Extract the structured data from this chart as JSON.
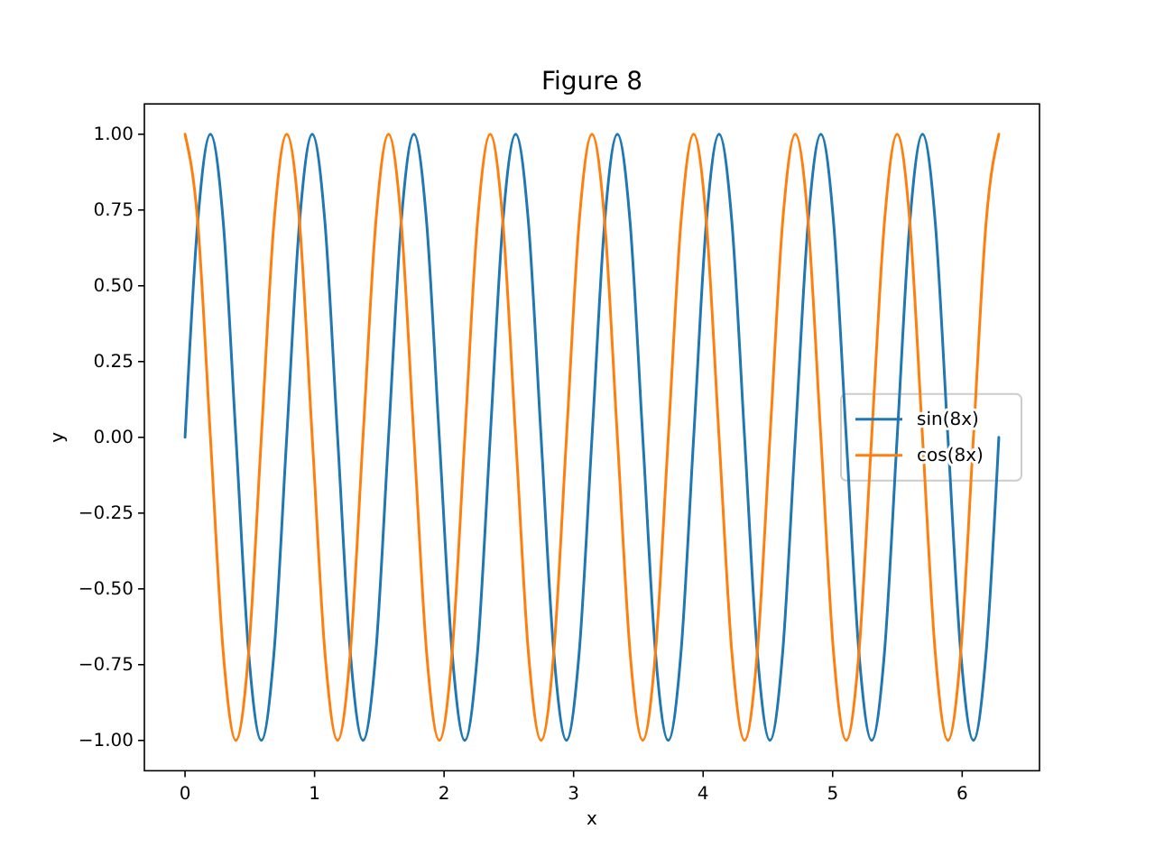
{
  "chart_data": {
    "type": "line",
    "title": "Figure 8",
    "xlabel": "x",
    "ylabel": "y",
    "x": [
      0,
      0.098,
      0.196,
      0.295,
      0.393,
      0.491,
      0.589,
      0.687,
      0.785,
      0.884,
      0.982,
      1.08,
      1.178,
      1.276,
      1.374,
      1.473,
      1.571,
      1.669,
      1.767,
      1.865,
      1.963,
      2.062,
      2.16,
      2.258,
      2.356,
      2.454,
      2.553,
      2.651,
      2.749,
      2.847,
      2.945,
      3.043,
      3.142,
      3.24,
      3.338,
      3.436,
      3.534,
      3.632,
      3.731,
      3.829,
      3.927,
      4.025,
      4.123,
      4.222,
      4.32,
      4.418,
      4.516,
      4.614,
      4.712,
      4.811,
      4.909,
      5.007,
      5.105,
      5.203,
      5.301,
      5.4,
      5.498,
      5.596,
      5.694,
      5.792,
      5.89,
      5.989,
      6.087,
      6.185,
      6.283
    ],
    "series": [
      {
        "name": "sin(8x)",
        "color": "#1f77b4",
        "values": [
          0,
          0.71,
          1,
          0.71,
          0,
          -0.71,
          -1,
          -0.71,
          0,
          0.71,
          1,
          0.71,
          0,
          -0.71,
          -1,
          -0.71,
          0,
          0.71,
          1,
          0.71,
          0,
          -0.71,
          -1,
          -0.71,
          0,
          0.71,
          1,
          0.71,
          0,
          -0.71,
          -1,
          -0.71,
          0,
          0.71,
          1,
          0.71,
          0,
          -0.71,
          -1,
          -0.71,
          0,
          0.71,
          1,
          0.71,
          0,
          -0.71,
          -1,
          -0.71,
          0,
          0.71,
          1,
          0.71,
          0,
          -0.71,
          -1,
          -0.71,
          0,
          0.71,
          1,
          0.71,
          0,
          -0.71,
          -1,
          -0.71,
          0
        ]
      },
      {
        "name": "cos(8x)",
        "color": "#ff7f0e",
        "values": [
          1,
          0.71,
          0,
          -0.71,
          -1,
          -0.71,
          0,
          0.71,
          1,
          0.71,
          0,
          -0.71,
          -1,
          -0.71,
          0,
          0.71,
          1,
          0.71,
          0,
          -0.71,
          -1,
          -0.71,
          0,
          0.71,
          1,
          0.71,
          0,
          -0.71,
          -1,
          -0.71,
          0,
          0.71,
          1,
          0.71,
          0,
          -0.71,
          -1,
          -0.71,
          0,
          0.71,
          1,
          0.71,
          0,
          -0.71,
          -1,
          -0.71,
          0,
          0.71,
          1,
          0.71,
          0,
          -0.71,
          -1,
          -0.71,
          0,
          0.71,
          1,
          0.71,
          0,
          -0.71,
          -1,
          -0.71,
          0,
          0.71,
          1
        ]
      }
    ],
    "xlim": [
      -0.314,
      6.597
    ],
    "ylim": [
      -1.1,
      1.1
    ],
    "xticks": [
      0,
      1,
      2,
      3,
      4,
      5,
      6
    ],
    "yticks": [
      {
        "value": -1,
        "label": "−1.00"
      },
      {
        "value": -0.75,
        "label": "−0.75"
      },
      {
        "value": -0.5,
        "label": "−0.50"
      },
      {
        "value": -0.25,
        "label": "−0.25"
      },
      {
        "value": 0,
        "label": "0.00"
      },
      {
        "value": 0.25,
        "label": "0.25"
      },
      {
        "value": 0.5,
        "label": "0.50"
      },
      {
        "value": 0.75,
        "label": "0.75"
      },
      {
        "value": 1,
        "label": "1.00"
      }
    ],
    "legend": "right",
    "grid": false
  }
}
